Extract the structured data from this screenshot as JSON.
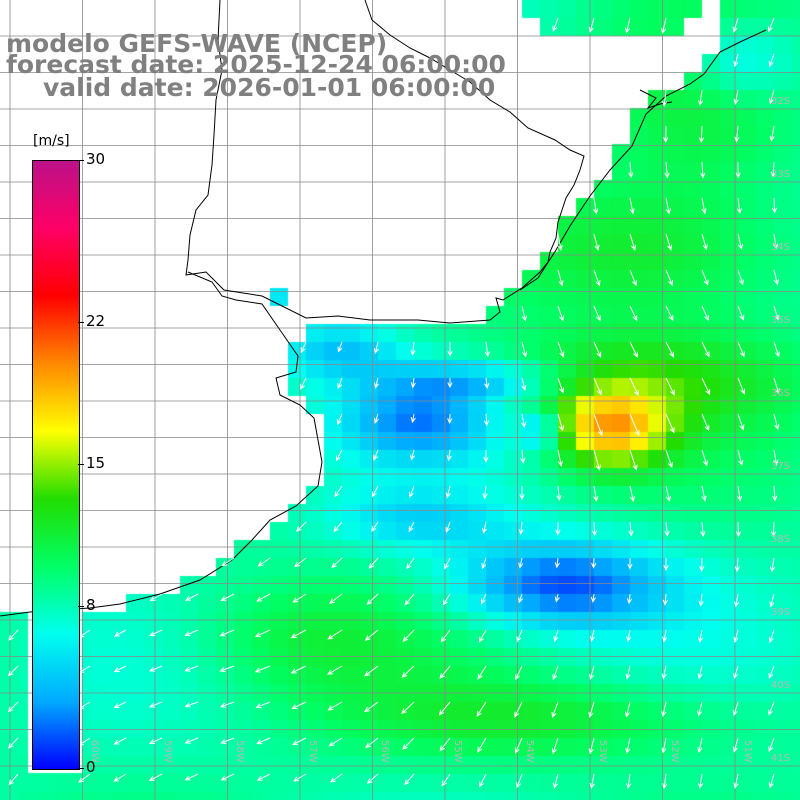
{
  "title": {
    "line1": "modelo GEFS-WAVE (NCEP)",
    "line2": "forecast date: 2025-12-24 06:00:00",
    "line3": "valid date: 2026-01-01 06:00:00"
  },
  "colorbar": {
    "unit": "[m/s]",
    "ticks": [
      "30",
      "22",
      "15",
      "8",
      "0"
    ],
    "tick_values": [
      30,
      22,
      15,
      8,
      0
    ],
    "range": [
      0,
      30
    ],
    "colors": [
      "#0000ff",
      "#00aaff",
      "#00ffee",
      "#00ff66",
      "#22dd00",
      "#ffff00",
      "#ff8800",
      "#ff0000",
      "#ff0066",
      "#bb1188"
    ]
  },
  "map": {
    "lat_labels": [
      "32S",
      "33S",
      "34S",
      "35S",
      "36S",
      "37S",
      "38S",
      "39S",
      "40S",
      "41S"
    ],
    "lon_labels": [
      "60W",
      "59W",
      "58W",
      "57W",
      "56W",
      "55W",
      "54W",
      "53W",
      "52W",
      "51W"
    ],
    "grid_color": "#888888",
    "coast_color": "#000000",
    "arrow_color": "#ffffff",
    "land_color": "#ffffff"
  }
}
